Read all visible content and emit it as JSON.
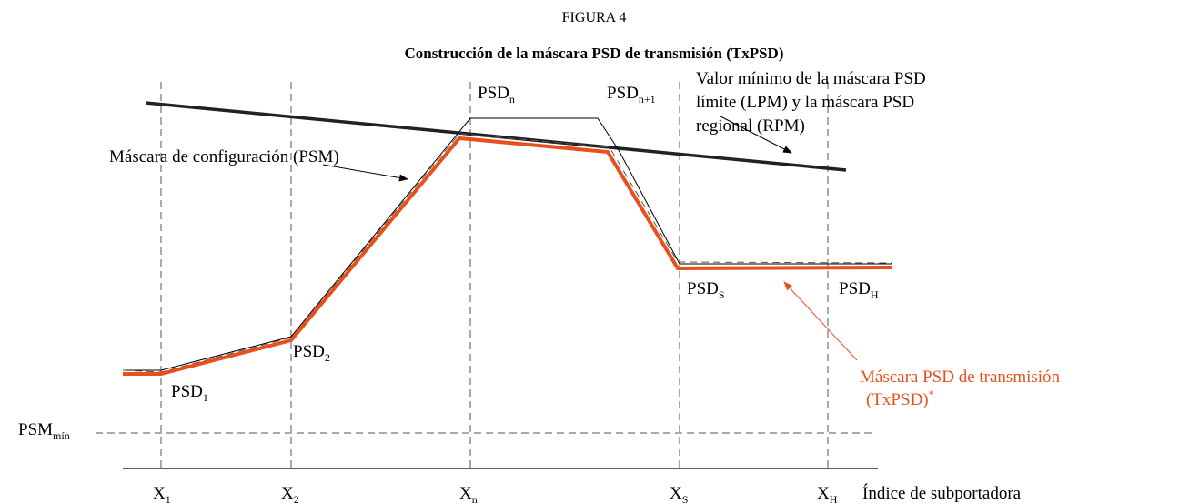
{
  "figure_number": "FIGURA 4",
  "title": "Construcción de la máscara PSD de transmisión (TxPSD)",
  "points": [
    {
      "base": "PSD",
      "sub": "n"
    },
    {
      "base": "PSD",
      "sub": "n+1"
    },
    {
      "base": "PSD",
      "sub": "2"
    },
    {
      "base": "PSD",
      "sub": "1"
    },
    {
      "base": "PSD",
      "sub": "S"
    },
    {
      "base": "PSD",
      "sub": "H"
    }
  ],
  "y_label": {
    "base": "PSM",
    "sub": "mín"
  },
  "x_labels": [
    {
      "base": "X",
      "sub": "1"
    },
    {
      "base": "X",
      "sub": "2"
    },
    {
      "base": "X",
      "sub": "n"
    },
    {
      "base": "X",
      "sub": "S"
    },
    {
      "base": "X",
      "sub": "H"
    }
  ],
  "axis_label": "Índice de subportadora",
  "annotations": {
    "limit": [
      "Valor mínimo de la máscara PSD",
      "límite (LPM) y la máscara PSD",
      "regional (RPM)"
    ],
    "psm": "Máscara de configuración (PSM)",
    "txpsd": [
      "Máscara PSD de transmisión",
      "(TxPSD)"
    ],
    "txpsd_mark": "*"
  }
}
